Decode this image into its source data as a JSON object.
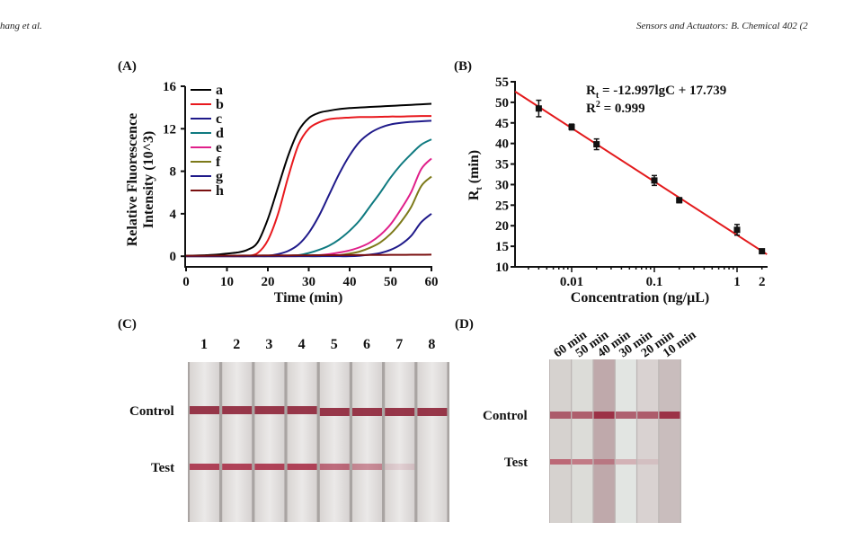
{
  "header": {
    "left": "hang et al.",
    "right": "Sensors and Actuators: B. Chemical 402 (2"
  },
  "panels": {
    "a": "(A)",
    "b": "(B)",
    "c": "(C)",
    "d": "(D)"
  },
  "chart_data": [
    {
      "type": "line",
      "xlabel": "Time (min)",
      "ylabel_line1": "Relative Fluorescence",
      "ylabel_line2": "Intensity (10^3)",
      "xlim": [
        0,
        60
      ],
      "ylim": [
        -1,
        16
      ],
      "xticks": [
        "0",
        "10",
        "20",
        "30",
        "40",
        "50",
        "60"
      ],
      "yticks": [
        "0",
        "4",
        "8",
        "12",
        "16"
      ],
      "legend": "top-left",
      "x": [
        0,
        2.5,
        5,
        7.5,
        10,
        12.5,
        15,
        17.5,
        20,
        22.5,
        25,
        27.5,
        30,
        32.5,
        35,
        37.5,
        40,
        42.5,
        45,
        47.5,
        50,
        52.5,
        55,
        57.5,
        60
      ],
      "series": [
        {
          "name": "a",
          "color": "#000000",
          "values": [
            0.05,
            0.07,
            0.1,
            0.15,
            0.25,
            0.35,
            0.6,
            1.3,
            3.5,
            6.5,
            9.5,
            11.8,
            13.0,
            13.5,
            13.7,
            13.85,
            13.95,
            14.0,
            14.05,
            14.1,
            14.15,
            14.2,
            14.25,
            14.3,
            14.35
          ]
        },
        {
          "name": "b",
          "color": "#e8191e",
          "values": [
            0,
            0,
            0,
            0,
            0,
            0,
            0.02,
            0.3,
            1.5,
            4,
            7.5,
            10.5,
            12,
            12.6,
            12.9,
            13,
            13.05,
            13.1,
            13.1,
            13.12,
            13.15,
            13.15,
            13.18,
            13.2,
            13.2
          ]
        },
        {
          "name": "c",
          "color": "#1f1a8a",
          "values": [
            0,
            0,
            0,
            0,
            0,
            0,
            0,
            0.02,
            0.05,
            0.2,
            0.5,
            1.1,
            2.2,
            3.8,
            5.8,
            7.8,
            9.5,
            10.8,
            11.6,
            12.1,
            12.4,
            12.55,
            12.65,
            12.7,
            12.75
          ]
        },
        {
          "name": "d",
          "color": "#0f7a80",
          "values": [
            0,
            0,
            0,
            0,
            0,
            0,
            0,
            0,
            0,
            0.02,
            0.05,
            0.1,
            0.3,
            0.6,
            1.0,
            1.6,
            2.4,
            3.4,
            4.7,
            6.0,
            7.4,
            8.6,
            9.6,
            10.5,
            11.0
          ]
        },
        {
          "name": "e",
          "color": "#e0208a",
          "values": [
            0,
            0,
            0,
            0,
            0,
            0,
            0,
            0,
            0,
            0,
            0,
            0.02,
            0.05,
            0.1,
            0.2,
            0.35,
            0.55,
            0.85,
            1.3,
            2.0,
            3.0,
            4.4,
            6.0,
            8.2,
            9.2
          ]
        },
        {
          "name": "f",
          "color": "#7d7a1a",
          "values": [
            0,
            0,
            0,
            0,
            0,
            0,
            0,
            0,
            0,
            0,
            0,
            0,
            0,
            0,
            0.05,
            0.1,
            0.25,
            0.45,
            0.8,
            1.3,
            2.1,
            3.2,
            4.6,
            6.6,
            7.5
          ]
        },
        {
          "name": "g",
          "color": "#1f1a8a",
          "values": [
            0,
            0,
            0,
            0,
            0,
            0,
            0,
            0,
            0,
            0,
            0,
            0,
            0,
            0,
            0,
            0,
            0,
            0.05,
            0.15,
            0.3,
            0.6,
            1.1,
            1.9,
            3.2,
            4.0
          ]
        },
        {
          "name": "h",
          "color": "#7a1010",
          "values": [
            0.05,
            0.05,
            0.05,
            0.06,
            0.06,
            0.06,
            0.07,
            0.07,
            0.08,
            0.08,
            0.08,
            0.09,
            0.09,
            0.1,
            0.1,
            0.1,
            0.11,
            0.11,
            0.12,
            0.12,
            0.13,
            0.13,
            0.14,
            0.14,
            0.15
          ]
        }
      ]
    },
    {
      "type": "scatter",
      "xscale": "log",
      "xlabel": "Concentration (ng/μL)",
      "ylabel": "R",
      "ylabel_sub": "t",
      "ylabel_unit": " (min)",
      "xlim": [
        0.00207,
        2.3
      ],
      "ylim": [
        10,
        55
      ],
      "xticks": [
        {
          "v": 0.01,
          "label": "0.01"
        },
        {
          "v": 0.1,
          "label": "0.1"
        },
        {
          "v": 1,
          "label": "1"
        },
        {
          "v": 2,
          "label": "2"
        }
      ],
      "yticks": [
        "10",
        "15",
        "20",
        "25",
        "30",
        "35",
        "40",
        "45",
        "50",
        "55"
      ],
      "points": [
        {
          "x": 0.004,
          "y": 48.5,
          "err": 2.0
        },
        {
          "x": 0.01,
          "y": 44.0,
          "err": 0.7
        },
        {
          "x": 0.02,
          "y": 39.8,
          "err": 1.3
        },
        {
          "x": 0.1,
          "y": 31.0,
          "err": 1.2
        },
        {
          "x": 0.2,
          "y": 26.2,
          "err": 0.6
        },
        {
          "x": 1,
          "y": 19.0,
          "err": 1.3
        },
        {
          "x": 2,
          "y": 13.8,
          "err": 0.4
        }
      ],
      "fit": {
        "slope": -12.997,
        "intercept": 17.739,
        "color": "#e31a1c"
      },
      "equation": {
        "lhs": "R",
        "sub": "t",
        "rhs": " = -12.997lgC + 17.739"
      },
      "r2": {
        "lhs": "R",
        "sup": "2",
        "rhs": " = 0.999"
      }
    }
  ],
  "strips_c": {
    "lanes": [
      "1",
      "2",
      "3",
      "4",
      "5",
      "6",
      "7",
      "8"
    ],
    "control_label": "Control",
    "test_label": "Test",
    "test_intensity": [
      1,
      1,
      1,
      1,
      0.75,
      0.55,
      0.15,
      0
    ]
  },
  "strips_d": {
    "lanes": [
      "60 min",
      "50 min",
      "40 min",
      "30 min",
      "20 min",
      "10 min"
    ],
    "control_label": "Control",
    "test_label": "Test",
    "test_intensity": [
      0.7,
      0.6,
      0.45,
      0.3,
      0.12,
      0
    ]
  }
}
